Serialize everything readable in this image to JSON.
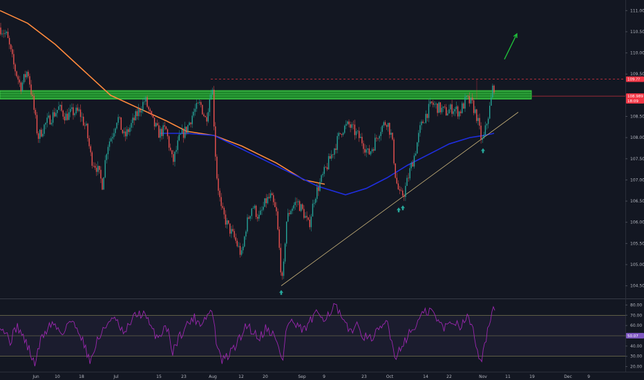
{
  "chart_data": [
    {
      "type": "candlestick",
      "ylim": [
        104.2,
        111.25
      ],
      "y_ticks": [
        "111.000",
        "110.500",
        "110.000",
        "109.500",
        "109.000",
        "108.500",
        "108.000",
        "107.500",
        "107.000",
        "106.500",
        "106.000",
        "105.500",
        "105.000",
        "104.500"
      ],
      "y_tick_values": [
        111.0,
        110.5,
        110.0,
        109.5,
        109.0,
        108.5,
        108.0,
        107.5,
        107.0,
        106.5,
        106.0,
        105.5,
        105.0,
        104.5
      ],
      "x_ticks": [
        "Jun",
        "10",
        "18",
        "Jul",
        "15",
        "23",
        "Aug",
        "12",
        "20",
        "Sep",
        "9",
        "23",
        "Oct",
        "14",
        "22",
        "Nov",
        "11",
        "19",
        "Dec",
        "9"
      ],
      "price_path": [
        [
          0,
          110.6
        ],
        [
          10,
          110.4
        ],
        [
          20,
          109.7
        ],
        [
          30,
          109.2
        ],
        [
          40,
          109.6
        ],
        [
          48,
          108.8
        ],
        [
          55,
          108.0
        ],
        [
          65,
          108.3
        ],
        [
          75,
          108.5
        ],
        [
          85,
          108.7
        ],
        [
          95,
          108.5
        ],
        [
          105,
          108.6
        ],
        [
          115,
          108.6
        ],
        [
          125,
          108.2
        ],
        [
          132,
          107.5
        ],
        [
          140,
          107.3
        ],
        [
          148,
          106.9
        ],
        [
          155,
          107.8
        ],
        [
          163,
          108.1
        ],
        [
          170,
          108.5
        ],
        [
          180,
          108.0
        ],
        [
          190,
          108.3
        ],
        [
          200,
          108.6
        ],
        [
          210,
          108.9
        ],
        [
          220,
          108.4
        ],
        [
          230,
          108.1
        ],
        [
          240,
          108.2
        ],
        [
          250,
          107.4
        ],
        [
          260,
          108.0
        ],
        [
          270,
          108.2
        ],
        [
          280,
          108.6
        ],
        [
          290,
          108.8
        ],
        [
          298,
          108.4
        ],
        [
          307,
          109.3
        ],
        [
          313,
          107.2
        ],
        [
          320,
          106.3
        ],
        [
          330,
          105.9
        ],
        [
          340,
          105.6
        ],
        [
          350,
          105.2
        ],
        [
          356,
          105.9
        ],
        [
          365,
          106.4
        ],
        [
          375,
          106.1
        ],
        [
          385,
          106.5
        ],
        [
          392,
          106.6
        ],
        [
          400,
          106.2
        ],
        [
          406,
          105.0
        ],
        [
          409,
          104.5
        ],
        [
          414,
          106.0
        ],
        [
          420,
          106.3
        ],
        [
          430,
          106.5
        ],
        [
          440,
          106.2
        ],
        [
          447,
          105.9
        ],
        [
          455,
          106.6
        ],
        [
          465,
          107.0
        ],
        [
          475,
          107.4
        ],
        [
          485,
          107.8
        ],
        [
          495,
          108.2
        ],
        [
          505,
          108.3
        ],
        [
          515,
          108.1
        ],
        [
          525,
          107.9
        ],
        [
          533,
          107.6
        ],
        [
          540,
          107.8
        ],
        [
          550,
          108.2
        ],
        [
          560,
          108.4
        ],
        [
          567,
          108.0
        ],
        [
          573,
          107.0
        ],
        [
          579,
          106.6
        ],
        [
          585,
          106.7
        ],
        [
          593,
          107.2
        ],
        [
          600,
          107.6
        ],
        [
          608,
          108.2
        ],
        [
          615,
          108.5
        ],
        [
          625,
          108.8
        ],
        [
          635,
          108.7
        ],
        [
          645,
          108.6
        ],
        [
          655,
          108.7
        ],
        [
          665,
          108.6
        ],
        [
          675,
          108.9
        ],
        [
          683,
          108.8
        ],
        [
          690,
          108.5
        ],
        [
          696,
          108.0
        ],
        [
          699,
          107.9
        ],
        [
          705,
          108.4
        ],
        [
          710,
          108.8
        ],
        [
          714,
          109.3
        ],
        [
          717,
          109.0
        ]
      ],
      "annotations": {
        "resistance_zone": [
          108.95,
          109.07
        ],
        "resistance_line": 109.38,
        "support_trendline": [
          [
            407,
            104.5
          ],
          [
            750,
            108.6
          ]
        ]
      },
      "price_tags": [
        {
          "label": "109.??",
          "value": 109.38,
          "color": "#f23645"
        },
        {
          "label": "108.989",
          "value": 108.98,
          "color": "#f23645"
        },
        {
          "label": "18:09",
          "value": 108.87,
          "color": "#f23645"
        }
      ],
      "moving_averages": [
        {
          "color": "#ff8a3d",
          "points": [
            [
              0,
              111.0
            ],
            [
              40,
              110.7
            ],
            [
              80,
              110.2
            ],
            [
              120,
              109.6
            ],
            [
              160,
              109.0
            ],
            [
              200,
              108.7
            ],
            [
              240,
              108.4
            ],
            [
              270,
              108.15
            ],
            [
              310,
              108.05
            ],
            [
              350,
              107.8
            ],
            [
              400,
              107.4
            ],
            [
              440,
              107.0
            ],
            [
              470,
              106.9
            ]
          ]
        },
        {
          "color": "#1f2ee0",
          "points": [
            [
              232,
              108.1
            ],
            [
              270,
              108.1
            ],
            [
              310,
              108.05
            ],
            [
              460,
              106.85
            ],
            [
              500,
              106.65
            ],
            [
              530,
              106.8
            ],
            [
              560,
              107.05
            ],
            [
              590,
              107.35
            ],
            [
              620,
              107.6
            ],
            [
              650,
              107.85
            ],
            [
              680,
              108.0
            ],
            [
              700,
              108.05
            ],
            [
              715,
              108.1
            ]
          ]
        }
      ],
      "arrows": [
        {
          "kind": "up",
          "color": "#26a69a",
          "at": [
            407,
            104.4
          ]
        },
        {
          "kind": "up",
          "color": "#26a69a",
          "at": [
            577,
            106.35
          ]
        },
        {
          "kind": "up",
          "color": "#26a69a",
          "at": [
            583,
            106.4
          ]
        },
        {
          "kind": "up",
          "color": "#26a69a",
          "at": [
            699,
            107.75
          ]
        },
        {
          "kind": "target",
          "color": "#1fbf3a",
          "from": [
            730,
            109.85
          ],
          "to": [
            748,
            110.45
          ]
        }
      ]
    },
    {
      "type": "line",
      "ylim": [
        15,
        85
      ],
      "y_ticks": [
        "80.00",
        "70.00",
        "60.00",
        "50.00",
        "40.00",
        "30.00",
        "20.00"
      ],
      "y_tick_values": [
        80,
        70,
        60,
        50,
        40,
        30,
        20
      ],
      "levels": [
        70,
        50,
        30
      ],
      "value_tag": {
        "label": "50.07",
        "value": 50.07
      },
      "series": [
        {
          "color": "#9c27b0",
          "points": [
            [
              0,
              62
            ],
            [
              15,
              45
            ],
            [
              25,
              60
            ],
            [
              40,
              40
            ],
            [
              50,
              22
            ],
            [
              60,
              48
            ],
            [
              75,
              63
            ],
            [
              90,
              52
            ],
            [
              100,
              65
            ],
            [
              115,
              55
            ],
            [
              125,
              35
            ],
            [
              132,
              25
            ],
            [
              140,
              45
            ],
            [
              150,
              55
            ],
            [
              160,
              68
            ],
            [
              170,
              62
            ],
            [
              180,
              50
            ],
            [
              190,
              65
            ],
            [
              200,
              72
            ],
            [
              210,
              70
            ],
            [
              220,
              55
            ],
            [
              230,
              48
            ],
            [
              240,
              62
            ],
            [
              250,
              35
            ],
            [
              260,
              50
            ],
            [
              270,
              60
            ],
            [
              280,
              68
            ],
            [
              290,
              62
            ],
            [
              300,
              70
            ],
            [
              307,
              75
            ],
            [
              313,
              45
            ],
            [
              320,
              25
            ],
            [
              330,
              30
            ],
            [
              340,
              40
            ],
            [
              350,
              50
            ],
            [
              356,
              62
            ],
            [
              365,
              55
            ],
            [
              375,
              48
            ],
            [
              385,
              58
            ],
            [
              395,
              52
            ],
            [
              405,
              35
            ],
            [
              409,
              25
            ],
            [
              414,
              55
            ],
            [
              420,
              65
            ],
            [
              430,
              58
            ],
            [
              440,
              55
            ],
            [
              450,
              65
            ],
            [
              460,
              72
            ],
            [
              470,
              68
            ],
            [
              480,
              75
            ],
            [
              485,
              80
            ],
            [
              495,
              65
            ],
            [
              505,
              55
            ],
            [
              515,
              60
            ],
            [
              525,
              52
            ],
            [
              533,
              45
            ],
            [
              540,
              50
            ],
            [
              550,
              55
            ],
            [
              560,
              65
            ],
            [
              567,
              45
            ],
            [
              573,
              28
            ],
            [
              580,
              40
            ],
            [
              590,
              50
            ],
            [
              600,
              58
            ],
            [
              608,
              68
            ],
            [
              615,
              72
            ],
            [
              625,
              75
            ],
            [
              635,
              62
            ],
            [
              645,
              58
            ],
            [
              655,
              65
            ],
            [
              665,
              60
            ],
            [
              675,
              68
            ],
            [
              683,
              62
            ],
            [
              690,
              40
            ],
            [
              696,
              25
            ],
            [
              700,
              35
            ],
            [
              705,
              55
            ],
            [
              710,
              65
            ],
            [
              714,
              75
            ],
            [
              717,
              68
            ]
          ]
        }
      ]
    }
  ]
}
